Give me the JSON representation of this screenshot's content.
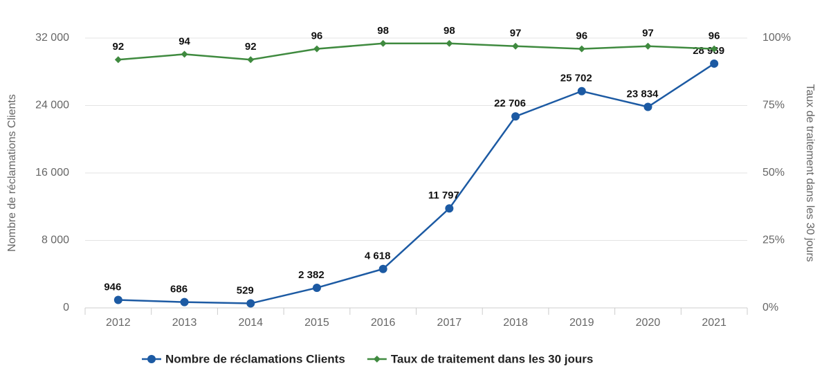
{
  "chart_data": {
    "type": "line",
    "categories": [
      "2012",
      "2013",
      "2014",
      "2015",
      "2016",
      "2017",
      "2018",
      "2019",
      "2020",
      "2021"
    ],
    "series": [
      {
        "name": "Nombre de réclamations Clients",
        "color": "#1c5aa3",
        "values": [
          946,
          686,
          529,
          2382,
          4618,
          11797,
          22706,
          25702,
          23834,
          28969
        ],
        "value_labels": [
          "946",
          "686",
          "529",
          "2 382",
          "4 618",
          "11 797",
          "22 706",
          "25 702",
          "23 834",
          "28 969"
        ]
      },
      {
        "name": "Taux de traitement dans les 30 jours",
        "color": "#3f8a3f",
        "axis": "y2",
        "values": [
          92,
          94,
          92,
          96,
          98,
          98,
          97,
          96,
          97,
          96
        ]
      }
    ],
    "ylabel": "Nombre de réclamations Clients",
    "y2label": "Taux de traitement dans les 30 jours",
    "ylim": [
      0,
      32000
    ],
    "yticks": [
      0,
      {
        "value": 8000,
        "label": "8 000"
      },
      {
        "value": 16000,
        "label": "16 000"
      },
      {
        "value": 24000,
        "label": "24 000"
      },
      {
        "value": 32000,
        "label": "32 000"
      }
    ],
    "y2lim": [
      0,
      100
    ],
    "y2ticks": [
      {
        "value": 0,
        "label": "0%"
      },
      {
        "value": 25,
        "label": "25%"
      },
      {
        "value": 50,
        "label": "50%"
      },
      {
        "value": 75,
        "label": "75%"
      },
      {
        "value": 100,
        "label": "100%"
      }
    ],
    "grid": true,
    "legend": "bottom"
  }
}
